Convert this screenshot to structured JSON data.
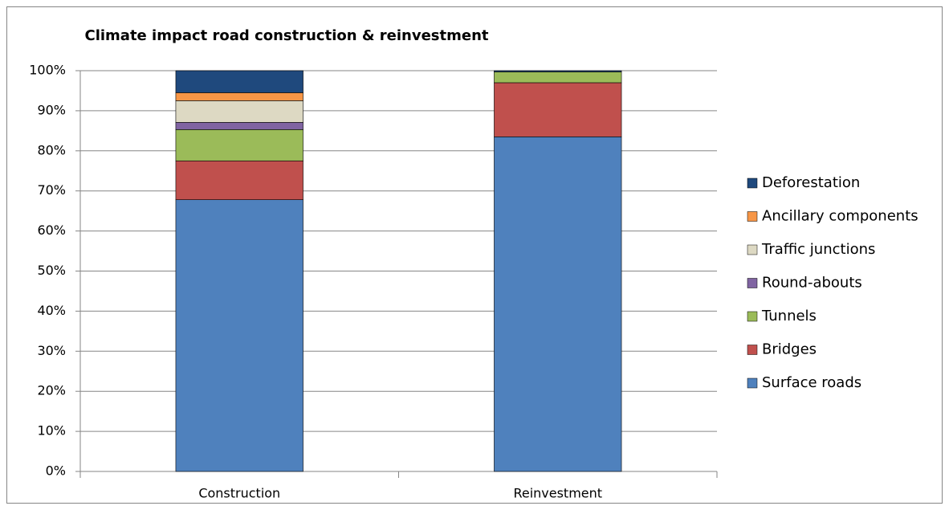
{
  "chart_data": {
    "type": "stacked_bar",
    "title": "Climate impact road construction & reinvestment",
    "categories": [
      "Construction",
      "Reinvestment"
    ],
    "series": [
      {
        "name": "Surface roads",
        "color": "#4f81bd",
        "values": [
          67.8,
          83.5
        ]
      },
      {
        "name": "Bridges",
        "color": "#c0504d",
        "values": [
          9.7,
          13.5
        ]
      },
      {
        "name": "Tunnels",
        "color": "#9bbb59",
        "values": [
          7.8,
          2.7
        ]
      },
      {
        "name": "Round-abouts",
        "color": "#8064a2",
        "values": [
          1.8,
          0
        ]
      },
      {
        "name": "Traffic junctions",
        "color": "#ddd9c3",
        "values": [
          5.4,
          0
        ]
      },
      {
        "name": "Ancillary components",
        "color": "#f79646",
        "values": [
          2.0,
          0
        ]
      },
      {
        "name": "Deforestation",
        "color": "#1f497d",
        "values": [
          5.5,
          0.3
        ]
      }
    ],
    "ylim": [
      0,
      100
    ],
    "yticks": [
      {
        "value": 0,
        "label": "0%"
      },
      {
        "value": 10,
        "label": "10%"
      },
      {
        "value": 20,
        "label": "20%"
      },
      {
        "value": 30,
        "label": "30%"
      },
      {
        "value": 40,
        "label": "40%"
      },
      {
        "value": 50,
        "label": "50%"
      },
      {
        "value": 60,
        "label": "60%"
      },
      {
        "value": 70,
        "label": "70%"
      },
      {
        "value": 80,
        "label": "80%"
      },
      {
        "value": 90,
        "label": "90%"
      },
      {
        "value": 100,
        "label": "100%"
      }
    ],
    "grid": true,
    "legend": "right"
  }
}
